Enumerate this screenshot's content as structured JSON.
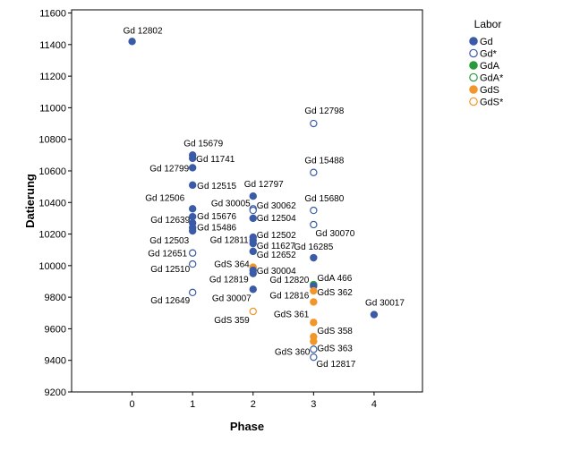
{
  "chart_data": {
    "type": "scatter",
    "title": "",
    "xlabel": "Phase",
    "ylabel": "Datierung",
    "xlim": [
      -1,
      4.8
    ],
    "ylim": [
      9200,
      11620
    ],
    "xticks": [
      "0",
      "1",
      "2",
      "3",
      "4"
    ],
    "yticks": [
      "9200",
      "9400",
      "9600",
      "9800",
      "10000",
      "10200",
      "10400",
      "10600",
      "10800",
      "11000",
      "11200",
      "11400",
      "11600"
    ],
    "grid": false,
    "legend": {
      "title": "Labor",
      "position": "right",
      "entries": [
        {
          "label": "Gd",
          "color": "#3a5ba8",
          "filled": true
        },
        {
          "label": "Gd*",
          "color": "#3a5ba8",
          "filled": false
        },
        {
          "label": "GdA",
          "color": "#2a9b3c",
          "filled": true
        },
        {
          "label": "GdA*",
          "color": "#2a9b3c",
          "filled": false
        },
        {
          "label": "GdS",
          "color": "#f0962a",
          "filled": true
        },
        {
          "label": "GdS*",
          "color": "#f0962a",
          "filled": false
        }
      ]
    },
    "points": [
      {
        "label": "Gd 12802",
        "x": 0,
        "y": 11420,
        "series": "Gd"
      },
      {
        "label": "Gd 15679",
        "x": 1,
        "y": 10700,
        "series": "Gd"
      },
      {
        "label": "Gd 11741",
        "x": 1,
        "y": 10680,
        "series": "Gd"
      },
      {
        "label": "Gd 12799",
        "x": 1,
        "y": 10620,
        "series": "Gd"
      },
      {
        "label": "Gd 12515",
        "x": 1,
        "y": 10510,
        "series": "Gd"
      },
      {
        "label": "Gd 12506",
        "x": 1,
        "y": 10360,
        "series": "Gd"
      },
      {
        "label": "Gd 15676",
        "x": 1,
        "y": 10310,
        "series": "Gd"
      },
      {
        "label": "Gd 12639",
        "x": 1,
        "y": 10270,
        "series": "Gd"
      },
      {
        "label": "Gd 15486",
        "x": 1,
        "y": 10240,
        "series": "Gd"
      },
      {
        "label": "Gd 12503",
        "x": 1,
        "y": 10220,
        "series": "Gd"
      },
      {
        "label": "Gd 12651",
        "x": 1,
        "y": 10080,
        "series": "Gd*"
      },
      {
        "label": "Gd 12510",
        "x": 1,
        "y": 10010,
        "series": "Gd*"
      },
      {
        "label": "Gd 12649",
        "x": 1,
        "y": 9830,
        "series": "Gd*"
      },
      {
        "label": "Gd 12797",
        "x": 2,
        "y": 10440,
        "series": "Gd"
      },
      {
        "label": "Gd 30005",
        "x": 2,
        "y": 10360,
        "series": "Gd*"
      },
      {
        "label": "Gd 30062",
        "x": 2,
        "y": 10350,
        "series": "Gd*"
      },
      {
        "label": "Gd 12504",
        "x": 2,
        "y": 10300,
        "series": "Gd"
      },
      {
        "label": "Gd 12502",
        "x": 2,
        "y": 10180,
        "series": "Gd"
      },
      {
        "label": "Gd 12811",
        "x": 2,
        "y": 10160,
        "series": "Gd"
      },
      {
        "label": "Gd 11627",
        "x": 2,
        "y": 10140,
        "series": "Gd"
      },
      {
        "label": "Gd 12652",
        "x": 2,
        "y": 10090,
        "series": "Gd"
      },
      {
        "label": "GdS 364",
        "x": 2,
        "y": 9990,
        "series": "GdS"
      },
      {
        "label": "Gd 30004",
        "x": 2,
        "y": 9970,
        "series": "Gd"
      },
      {
        "label": "Gd 12819",
        "x": 2,
        "y": 9950,
        "series": "Gd"
      },
      {
        "label": "Gd 30007",
        "x": 2,
        "y": 9850,
        "series": "Gd"
      },
      {
        "label": "GdS 359",
        "x": 2,
        "y": 9710,
        "series": "GdS*"
      },
      {
        "label": "Gd 12798",
        "x": 3,
        "y": 10900,
        "series": "Gd*"
      },
      {
        "label": "Gd 15488",
        "x": 3,
        "y": 10590,
        "series": "Gd*"
      },
      {
        "label": "Gd 15680",
        "x": 3,
        "y": 10350,
        "series": "Gd*"
      },
      {
        "label": "Gd 30070",
        "x": 3,
        "y": 10260,
        "series": "Gd*"
      },
      {
        "label": "Gd 16285",
        "x": 3,
        "y": 10050,
        "series": "Gd"
      },
      {
        "label": "GdA 466",
        "x": 3,
        "y": 9880,
        "series": "GdA"
      },
      {
        "label": "Gd 12820",
        "x": 3,
        "y": 9870,
        "series": "Gd"
      },
      {
        "label": "GdS 362",
        "x": 3,
        "y": 9840,
        "series": "GdS"
      },
      {
        "label": "Gd 12816",
        "x": 3,
        "y": 9770,
        "series": "GdS"
      },
      {
        "label": "GdS 361",
        "x": 3,
        "y": 9640,
        "series": "GdS"
      },
      {
        "label": "GdS 358",
        "x": 3,
        "y": 9550,
        "series": "GdS"
      },
      {
        "label": "GdS 363",
        "x": 3,
        "y": 9520,
        "series": "GdS"
      },
      {
        "label": "GdS 360",
        "x": 3,
        "y": 9470,
        "series": "Gd*"
      },
      {
        "label": "Gd 12817",
        "x": 3,
        "y": 9420,
        "series": "Gd*"
      },
      {
        "label": "Gd 30017",
        "x": 4,
        "y": 9690,
        "series": "Gd"
      }
    ]
  }
}
